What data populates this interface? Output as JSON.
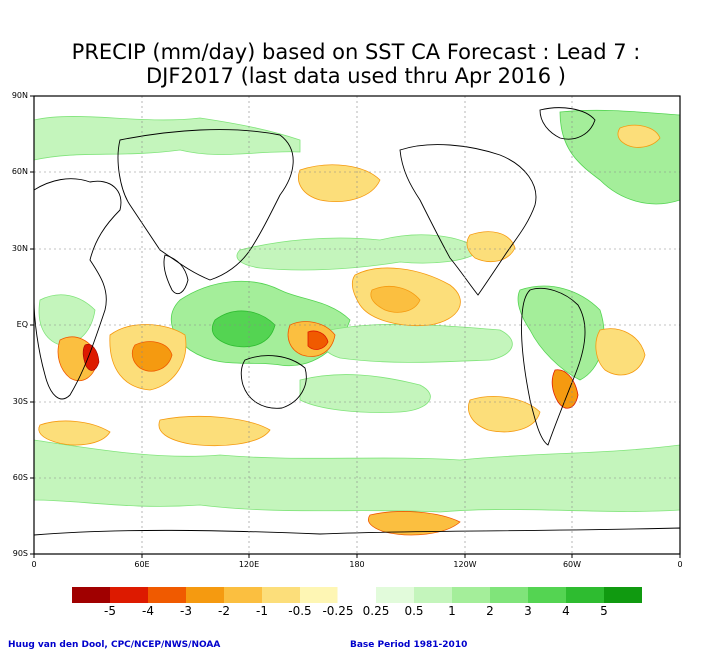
{
  "title": {
    "line1": "PRECIP (mm/day) based on SST CA Forecast : Lead 7 :",
    "line2": "DJF2017 (last data used thru Apr 2016 )"
  },
  "axes": {
    "lat_labels": [
      "90N",
      "60N",
      "30N",
      "EQ",
      "30S",
      "60S",
      "90S"
    ],
    "lon_labels": [
      "0",
      "60E",
      "120E",
      "180",
      "120W",
      "60W",
      "0"
    ]
  },
  "colorbar": {
    "labels": [
      "-5",
      "-4",
      "-3",
      "-2",
      "-1",
      "-0.5",
      "-0.25",
      "0.25",
      "0.5",
      "1",
      "2",
      "3",
      "4",
      "5"
    ],
    "colors": [
      "#a00000",
      "#dd1a00",
      "#f05a00",
      "#f59a10",
      "#fbbf40",
      "#fcde7a",
      "#fef6b4",
      "#ffffff",
      "#e2fbdb",
      "#c4f5bc",
      "#a4ee9a",
      "#80e47a",
      "#54d452",
      "#2ebc30",
      "#109a10"
    ]
  },
  "footer": {
    "left": "Huug van den Dool, CPC/NCEP/NWS/NOAA",
    "right": "Base Period 1981-2010"
  },
  "map_colors": {
    "land_outline": "#000000",
    "grid": "#888888",
    "wet_light": "#c4f5bc",
    "wet_mid": "#80e47a",
    "wet_dark": "#2ebc30",
    "dry_light": "#fcde7a",
    "dry_mid": "#f59a10",
    "dry_dark": "#dd1a00"
  }
}
